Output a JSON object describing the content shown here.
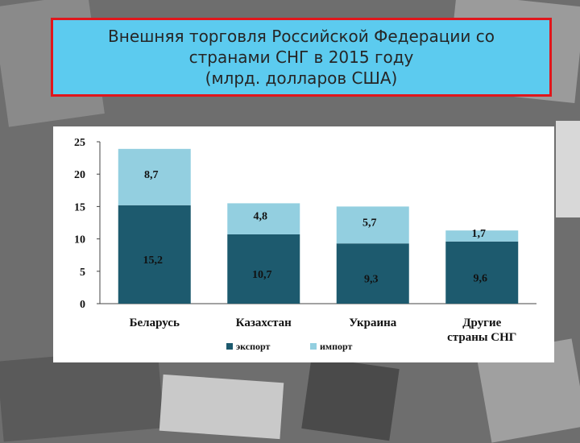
{
  "title": {
    "line1": "Внешняя торговля Российской Федерации со",
    "line2": "странами СНГ в  2015 году",
    "line3": "(млрд. долларов США)"
  },
  "colors": {
    "export": "#1d5a6e",
    "import": "#93cfe0",
    "title_bg": "#5ccbef",
    "title_border": "#e0161c"
  },
  "chart_data": {
    "type": "bar",
    "stacked": true,
    "categories": [
      [
        "Беларусь"
      ],
      [
        "Казахстан"
      ],
      [
        "Украина"
      ],
      [
        "Другие",
        "страны СНГ"
      ]
    ],
    "series": [
      {
        "name": "экспорт",
        "values": [
          15.2,
          10.7,
          9.3,
          9.6
        ],
        "labels": [
          "15,2",
          "10,7",
          "9,3",
          "9,6"
        ]
      },
      {
        "name": "импорт",
        "values": [
          8.7,
          4.8,
          5.7,
          1.7
        ],
        "labels": [
          "8,7",
          "4,8",
          "5,7",
          "1,7"
        ]
      }
    ],
    "ylim": [
      0,
      25
    ],
    "yticks": [
      0,
      5,
      10,
      15,
      20,
      25
    ],
    "legend": "bottom",
    "grid": false
  }
}
